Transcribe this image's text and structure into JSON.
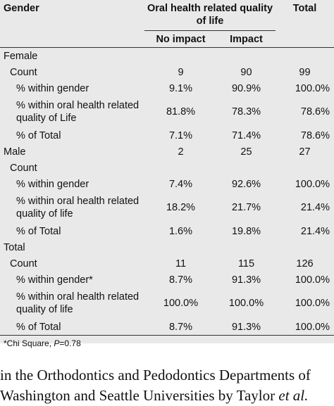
{
  "header": {
    "gender": "Gender",
    "ohrql": "Oral health related quality of life",
    "total": "Total",
    "no_impact": "No impact",
    "impact": "Impact"
  },
  "groups": [
    {
      "label": "Female",
      "rows": [
        {
          "label": "Count",
          "no_impact": "9",
          "impact": "90",
          "total": "99"
        },
        {
          "label": "% within gender",
          "no_impact": "9.1%",
          "impact": "90.9%",
          "total": "100.0%"
        },
        {
          "label": "% within oral health related quality of Life",
          "no_impact": "81.8%",
          "impact": "78.3%",
          "total": "78.6%"
        },
        {
          "label": "% of Total",
          "no_impact": "7.1%",
          "impact": "71.4%",
          "total": "78.6%"
        }
      ]
    },
    {
      "label": "Male",
      "inline": {
        "no_impact": "2",
        "impact": "25",
        "total": "27"
      },
      "rows": [
        {
          "label": "Count"
        },
        {
          "label": "% within gender",
          "no_impact": "7.4%",
          "impact": "92.6%",
          "total": "100.0%"
        },
        {
          "label": "% within oral health related quality of life",
          "no_impact": "18.2%",
          "impact": "21.7%",
          "total": "21.4%"
        },
        {
          "label": "% of Total",
          "no_impact": "1.6%",
          "impact": "19.8%",
          "total": "21.4%"
        }
      ]
    },
    {
      "label": "Total",
      "rows": [
        {
          "label": "Count",
          "no_impact": "11",
          "impact": "115",
          "total": "126"
        },
        {
          "label": "% within gender*",
          "no_impact": "8.7%",
          "impact": "91.3%",
          "total": "100.0%"
        },
        {
          "label": "% within oral health related quality of life",
          "no_impact": "100.0%",
          "impact": "100.0%",
          "total": "100.0%"
        },
        {
          "label": "% of Total",
          "no_impact": "8.7%",
          "impact": "91.3%",
          "total": "100.0%"
        }
      ]
    }
  ],
  "footnote": {
    "prefix": "*Chi Square, ",
    "p": "P",
    "suffix": "=0.78"
  },
  "prose": {
    "line1": "in the Orthodontics and Pedodontics Departments of",
    "line2_prefix": "Washington and Seattle Universities by Taylor ",
    "line2_italic": "et al."
  }
}
